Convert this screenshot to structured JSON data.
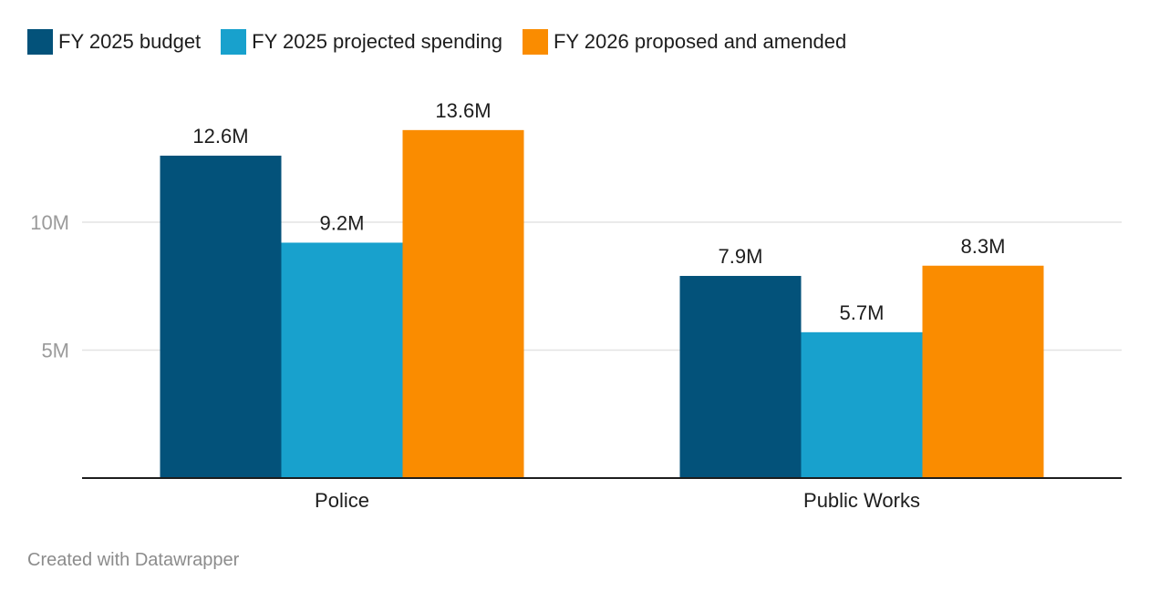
{
  "chart_data": {
    "type": "bar",
    "title": "",
    "xlabel": "",
    "ylabel": "",
    "categories": [
      "Police",
      "Public Works"
    ],
    "series": [
      {
        "name": "FY 2025 budget",
        "values": [
          12.6,
          7.9
        ],
        "labels": [
          "12.6M",
          "7.9M"
        ],
        "color": "#03527a"
      },
      {
        "name": "FY 2025 projected spending",
        "values": [
          9.2,
          5.7
        ],
        "labels": [
          "9.2M",
          "5.7M"
        ],
        "color": "#18a1cd"
      },
      {
        "name": "FY 2026 proposed and amended",
        "values": [
          13.6,
          8.3
        ],
        "labels": [
          "13.6M",
          "8.3M"
        ],
        "color": "#fa8c00"
      }
    ],
    "yticks": [
      {
        "value": 5,
        "label": "5M"
      },
      {
        "value": 10,
        "label": "10M"
      }
    ],
    "ylim": [
      0,
      14
    ],
    "grid": true,
    "legend": "top-left"
  },
  "footer": "Created with Datawrapper"
}
